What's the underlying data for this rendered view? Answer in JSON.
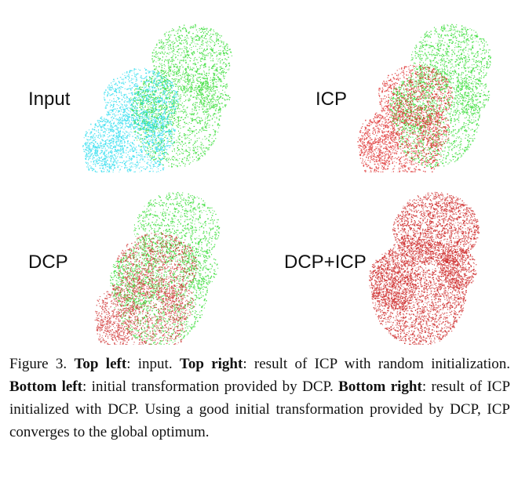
{
  "panels": [
    {
      "id": "top-left",
      "label": "Input",
      "source_color": "#22dcee",
      "target_color": "#33dd33",
      "overlay": false
    },
    {
      "id": "top-right",
      "label": "ICP",
      "source_color": "#dd2222",
      "target_color": "#33dd33",
      "overlay": false
    },
    {
      "id": "bottom-left",
      "label": "DCP",
      "source_color": "#cc2222",
      "target_color": "#33dd33",
      "overlay": true
    },
    {
      "id": "bottom-right",
      "label": "DCP+ICP",
      "source_color": "#cc2222",
      "target_color": "#cc2222",
      "overlay": true
    }
  ],
  "caption": {
    "figure_label": "Figure 3.",
    "parts": [
      {
        "bold": "Top left",
        "text": ": input. "
      },
      {
        "bold": "Top right",
        "text": ": result of ICP with random initialization. "
      },
      {
        "bold": "Bottom left",
        "text": ": initial transformation provided by DCP. "
      },
      {
        "bold": "Bottom right",
        "text": ": result of ICP initialized with DCP. Using a good initial transformation provided by DCP, ICP converges to the global optimum."
      }
    ]
  }
}
